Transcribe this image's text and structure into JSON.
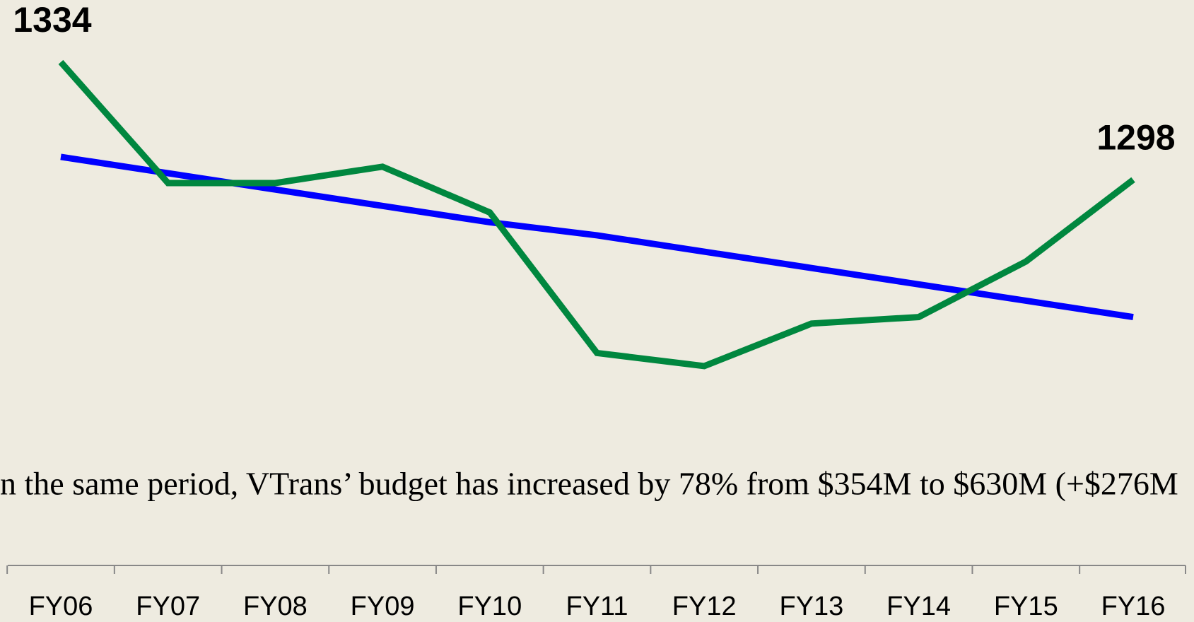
{
  "chart_data": {
    "type": "line",
    "categories": [
      "FY06",
      "FY07",
      "FY08",
      "FY09",
      "FY10",
      "FY11",
      "FY12",
      "FY13",
      "FY14",
      "FY15",
      "FY16"
    ],
    "series": [
      {
        "color": "#00873f",
        "values": [
          1334,
          1297,
          1297,
          1302,
          1288,
          1245,
          1241,
          1254,
          1256,
          1273,
          1298
        ],
        "value_labels": [
          1334,
          null,
          null,
          null,
          null,
          null,
          null,
          null,
          null,
          null,
          1298
        ]
      },
      {
        "color": "#0000ff",
        "values": [
          1305,
          1300,
          1295,
          1290,
          1285,
          1281,
          1276,
          1271,
          1266,
          1261,
          1256
        ]
      }
    ],
    "ylim": [
      1180,
      1353
    ],
    "annotation": "n the same period, VTrans’ budget has increased by 78% from $354M to $630M (+$276M"
  }
}
